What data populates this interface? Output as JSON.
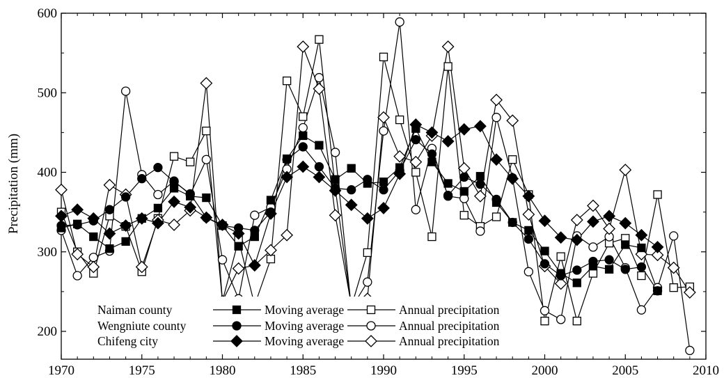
{
  "chart_data": {
    "type": "line",
    "title": "",
    "xlabel": "",
    "ylabel": "Precipitation (mm)",
    "xlim": [
      1970,
      2010
    ],
    "ylim": [
      165,
      600
    ],
    "xticks": [
      "1970",
      "1975",
      "1980",
      "1985",
      "1990",
      "1995",
      "2000",
      "2005",
      "2010"
    ],
    "yticks": [
      "200",
      "300",
      "400",
      "500",
      "600"
    ],
    "grid": false,
    "legend_position": "bottom-left",
    "legend": [
      {
        "group": "Naiman county",
        "entries": [
          "Moving average",
          "Annual precipitation"
        ]
      },
      {
        "group": "Wengniute county",
        "entries": [
          "Moving average",
          "Annual precipitation"
        ]
      },
      {
        "group": "Chifeng city",
        "entries": [
          "Moving average",
          "Annual precipitation"
        ]
      }
    ],
    "series": [
      {
        "key": "naiman_annual",
        "group": "Naiman county",
        "name": "Annual precipitation",
        "marker": "square-open",
        "x": [
          1970,
          1971,
          1972,
          1973,
          1974,
          1975,
          1976,
          1977,
          1978,
          1979,
          1980,
          1981,
          1982,
          1983,
          1984,
          1985,
          1986,
          1987,
          1988,
          1989,
          1990,
          1991,
          1992,
          1993,
          1994,
          1995,
          1996,
          1997,
          1998,
          1999,
          2000,
          2001,
          2002,
          2003,
          2004,
          2005,
          2006,
          2007,
          2008,
          2009
        ],
        "y": [
          350,
          300,
          273,
          345,
          332,
          275,
          342,
          420,
          413,
          452,
          238,
          315,
          233,
          291,
          515,
          470,
          567,
          380,
          231,
          299,
          545,
          466,
          400,
          319,
          533,
          346,
          332,
          344,
          416,
          372,
          213,
          294,
          213,
          273,
          311,
          317,
          270,
          372,
          255,
          256
        ]
      },
      {
        "key": "naiman_ma",
        "group": "Naiman county",
        "name": "Moving average",
        "marker": "square-filled",
        "x": [
          1970,
          1971,
          1972,
          1973,
          1974,
          1975,
          1976,
          1977,
          1978,
          1979,
          1980,
          1981,
          1982,
          1983,
          1984,
          1985,
          1986,
          1987,
          1988,
          1989,
          1990,
          1991,
          1992,
          1993,
          1994,
          1995,
          1996,
          1997,
          1998,
          1999,
          2000,
          2001,
          2002,
          2003,
          2004,
          2005,
          2006,
          2007
        ],
        "y": [
          330,
          335,
          319,
          304,
          313,
          342,
          355,
          380,
          370,
          368,
          333,
          307,
          319,
          365,
          417,
          446,
          434,
          391,
          405,
          386,
          388,
          406,
          455,
          413,
          386,
          376,
          395,
          362,
          337,
          327,
          301,
          273,
          261,
          282,
          278,
          309,
          305,
          251
        ]
      },
      {
        "key": "weng_annual",
        "group": "Wengniute county",
        "name": "Annual precipitation",
        "marker": "circle-open",
        "x": [
          1970,
          1971,
          1972,
          1973,
          1974,
          1975,
          1976,
          1977,
          1978,
          1979,
          1980,
          1981,
          1982,
          1983,
          1984,
          1985,
          1986,
          1987,
          1988,
          1989,
          1990,
          1991,
          1992,
          1993,
          1994,
          1995,
          1996,
          1997,
          1998,
          1999,
          2000,
          2001,
          2002,
          2003,
          2004,
          2005,
          2006,
          2007,
          2008,
          2009
        ],
        "y": [
          327,
          270,
          293,
          301,
          502,
          397,
          372,
          389,
          372,
          416,
          290,
          241,
          346,
          356,
          404,
          456,
          519,
          425,
          229,
          262,
          452,
          589,
          353,
          430,
          370,
          367,
          326,
          469,
          393,
          275,
          226,
          215,
          320,
          306,
          319,
          280,
          227,
          255,
          320,
          176
        ]
      },
      {
        "key": "weng_ma",
        "group": "Wengniute county",
        "name": "Moving average",
        "marker": "circle-filled",
        "x": [
          1970,
          1971,
          1972,
          1973,
          1974,
          1975,
          1976,
          1977,
          1978,
          1979,
          1980,
          1981,
          1982,
          1983,
          1984,
          1985,
          1986,
          1987,
          1988,
          1989,
          1990,
          1991,
          1992,
          1993,
          1994,
          1995,
          1996,
          1997,
          1998,
          1999,
          2000,
          2001,
          2002,
          2003,
          2004,
          2005,
          2006,
          2007
        ],
        "y": [
          333,
          334,
          339,
          353,
          369,
          392,
          406,
          388,
          373,
          343,
          333,
          330,
          327,
          350,
          416,
          432,
          407,
          380,
          378,
          391,
          378,
          402,
          441,
          423,
          371,
          394,
          385,
          366,
          337,
          316,
          285,
          270,
          277,
          288,
          290,
          278,
          281,
          251
        ]
      },
      {
        "key": "chifeng_annual",
        "group": "Chifeng city",
        "name": "Annual precipitation",
        "marker": "diamond-open",
        "x": [
          1970,
          1971,
          1972,
          1973,
          1974,
          1975,
          1976,
          1977,
          1978,
          1979,
          1980,
          1981,
          1982,
          1983,
          1984,
          1985,
          1986,
          1987,
          1988,
          1989,
          1990,
          1991,
          1992,
          1993,
          1994,
          1995,
          1996,
          1997,
          1998,
          1999,
          2000,
          2001,
          2002,
          2003,
          2004,
          2005,
          2006,
          2007,
          2008,
          2009
        ],
        "y": [
          378,
          297,
          281,
          384,
          372,
          281,
          340,
          334,
          352,
          512,
          238,
          279,
          283,
          302,
          321,
          558,
          505,
          346,
          233,
          241,
          469,
          420,
          413,
          446,
          558,
          405,
          370,
          491,
          465,
          347,
          282,
          260,
          340,
          358,
          329,
          403,
          297,
          296,
          280,
          249
        ]
      },
      {
        "key": "chifeng_ma",
        "group": "Chifeng city",
        "name": "Moving average",
        "marker": "diamond-filled",
        "x": [
          1970,
          1971,
          1972,
          1973,
          1974,
          1975,
          1976,
          1977,
          1978,
          1979,
          1980,
          1981,
          1982,
          1983,
          1984,
          1985,
          1986,
          1987,
          1988,
          1989,
          1990,
          1991,
          1992,
          1993,
          1994,
          1995,
          1996,
          1997,
          1998,
          1999,
          2000,
          2001,
          2002,
          2003,
          2004,
          2005,
          2006,
          2007
        ],
        "y": [
          345,
          353,
          342,
          323,
          333,
          342,
          336,
          363,
          356,
          343,
          334,
          323,
          283,
          348,
          394,
          407,
          394,
          377,
          359,
          342,
          355,
          398,
          460,
          450,
          439,
          454,
          458,
          416,
          392,
          370,
          339,
          318,
          315,
          338,
          345,
          336,
          321,
          306
        ]
      }
    ]
  }
}
